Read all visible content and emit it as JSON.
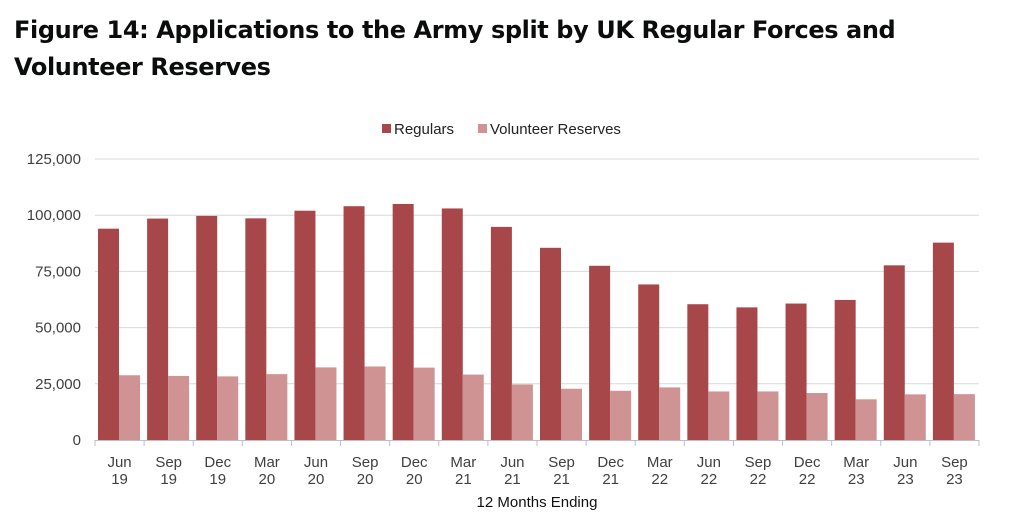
{
  "page": {
    "title": "Figure 14: Applications to the Army split by UK Regular Forces and Volunteer Reserves"
  },
  "chart_data": {
    "type": "bar",
    "title": "Figure 14: Applications to the Army split by UK Regular Forces and Volunteer Reserves",
    "xlabel": "12 Months Ending",
    "ylabel": "",
    "categories": [
      [
        "Jun",
        "19"
      ],
      [
        "Sep",
        "19"
      ],
      [
        "Dec",
        "19"
      ],
      [
        "Mar",
        "20"
      ],
      [
        "Jun",
        "20"
      ],
      [
        "Sep",
        "20"
      ],
      [
        "Dec",
        "20"
      ],
      [
        "Mar",
        "21"
      ],
      [
        "Jun",
        "21"
      ],
      [
        "Sep",
        "21"
      ],
      [
        "Dec",
        "21"
      ],
      [
        "Mar",
        "22"
      ],
      [
        "Jun",
        "22"
      ],
      [
        "Sep",
        "22"
      ],
      [
        "Dec",
        "22"
      ],
      [
        "Mar",
        "23"
      ],
      [
        "Jun",
        "23"
      ],
      [
        "Sep",
        "23"
      ]
    ],
    "series": [
      {
        "name": "Regulars",
        "color": "#a8474a",
        "values": [
          94000,
          98500,
          99700,
          98600,
          102000,
          104000,
          105000,
          103000,
          94800,
          85500,
          77500,
          69200,
          60400,
          59000,
          60700,
          62300,
          77700,
          87800
        ]
      },
      {
        "name": "Volunteer Reserves",
        "color": "#d09393",
        "values": [
          28800,
          28500,
          28300,
          29300,
          32300,
          32700,
          32200,
          29100,
          24700,
          22800,
          21900,
          23400,
          21600,
          21600,
          20900,
          18100,
          20300,
          20400
        ]
      }
    ],
    "ylim": [
      0,
      125000
    ],
    "yticks": [
      0,
      25000,
      50000,
      75000,
      100000,
      125000
    ],
    "ytick_labels": [
      "0",
      "25,000",
      "50,000",
      "75,000",
      "100,000",
      "125,000"
    ],
    "grid": true,
    "legend_position": "top-center"
  }
}
